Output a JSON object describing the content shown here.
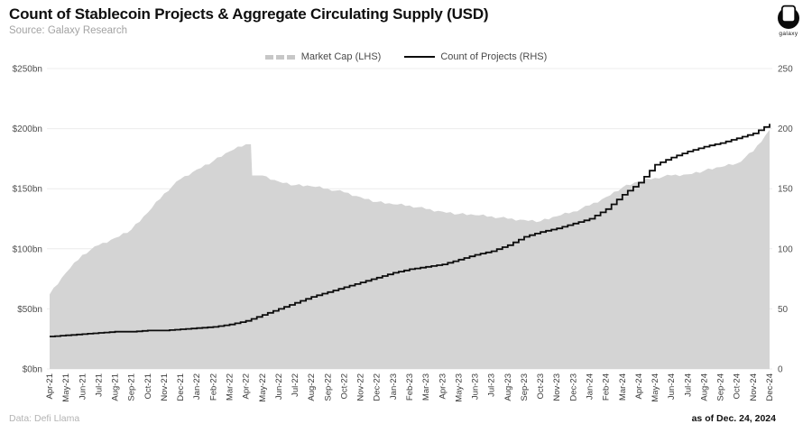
{
  "header": {
    "title": "Count of Stablecoin Projects & Aggregate Circulating Supply (USD)",
    "subtitle": "Source: Galaxy Research",
    "logo_text": "galaxy"
  },
  "legend": [
    {
      "label": "Market Cap (LHS)",
      "swatch": "gray-area",
      "color": "#c7c7c7"
    },
    {
      "label": "Count of Projects (RHS)",
      "swatch": "black-line",
      "color": "#0c0c0c"
    }
  ],
  "footer": {
    "left": "Data: Defi Llama",
    "right": "as of Dec. 24, 2024"
  },
  "colors": {
    "area_fill": "#d4d4d4",
    "line": "#0c0c0c",
    "grid": "#ececec",
    "axis_label": "#4f4f4f",
    "x_label": "#3a3a3a",
    "background": "#ffffff"
  },
  "chart_data": {
    "type": "area",
    "title": "Count of Stablecoin Projects & Aggregate Circulating Supply (USD)",
    "grid": "horizontal",
    "legend_position": "top-center",
    "categories": [
      "Apr-21",
      "May-21",
      "Jun-21",
      "Jul-21",
      "Aug-21",
      "Sep-21",
      "Oct-21",
      "Nov-21",
      "Dec-21",
      "Jan-22",
      "Feb-22",
      "Mar-22",
      "Apr-22",
      "May-22",
      "Jun-22",
      "Jul-22",
      "Aug-22",
      "Sep-22",
      "Oct-22",
      "Nov-22",
      "Dec-22",
      "Jan-23",
      "Feb-23",
      "Mar-23",
      "Apr-23",
      "May-23",
      "Jun-23",
      "Jul-23",
      "Aug-23",
      "Sep-23",
      "Oct-23",
      "Nov-23",
      "Dec-23",
      "Jan-24",
      "Feb-24",
      "Mar-24",
      "Apr-24",
      "May-24",
      "Jun-24",
      "Jul-24",
      "Aug-24",
      "Sep-24",
      "Oct-24",
      "Nov-24",
      "Dec-24"
    ],
    "series": [
      {
        "name": "Market Cap (LHS)",
        "type": "area",
        "axis": "left",
        "unit": "USD bn",
        "values": [
          62,
          80,
          95,
          103,
          109,
          116,
          130,
          146,
          158,
          166,
          173,
          181,
          187,
          161,
          156,
          153,
          152,
          150,
          147,
          143,
          139,
          137,
          136,
          133,
          131,
          129,
          128,
          127,
          125,
          124,
          123,
          127,
          131,
          136,
          143,
          151,
          156,
          159,
          161,
          162,
          165,
          168,
          171,
          181,
          199
        ]
      },
      {
        "name": "Count of Projects (RHS)",
        "type": "line-step",
        "axis": "right",
        "unit": "count",
        "values": [
          27,
          28,
          29,
          30,
          31,
          31,
          32,
          32,
          33,
          34,
          35,
          37,
          40,
          45,
          50,
          55,
          60,
          64,
          68,
          72,
          76,
          80,
          83,
          85,
          87,
          91,
          95,
          98,
          103,
          110,
          114,
          117,
          121,
          125,
          133,
          145,
          155,
          170,
          176,
          181,
          185,
          188,
          192,
          196,
          204
        ]
      }
    ],
    "left_axis": {
      "min": 0,
      "max": 250,
      "tick_values": [
        0,
        50,
        100,
        150,
        200,
        250
      ],
      "tick_labels": [
        "$0bn",
        "$50bn",
        "$100bn",
        "$150bn",
        "$200bn",
        "$250bn"
      ]
    },
    "right_axis": {
      "min": 0,
      "max": 250,
      "tick_values": [
        0,
        50,
        100,
        150,
        200,
        250
      ],
      "tick_labels": [
        "0",
        "50",
        "100",
        "150",
        "200",
        "250"
      ]
    }
  }
}
